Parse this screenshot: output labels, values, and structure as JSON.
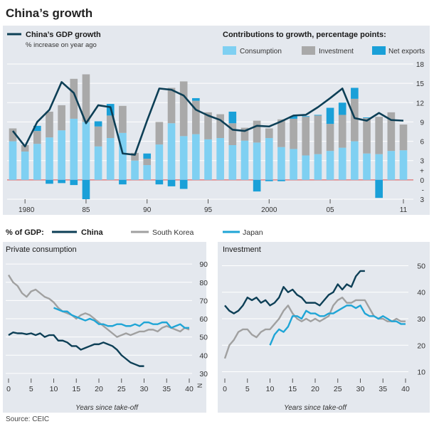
{
  "title": "China’s growth",
  "source": "Source: CEIC",
  "colors": {
    "background": "#e8ebef",
    "panel": "#e4e8ee",
    "china": "#0d3f56",
    "korea": "#a0a0a0",
    "japan": "#1fa5d6",
    "consumption": "#7fd0f2",
    "investment": "#a9a9a9",
    "net_exports": "#1aa0d8",
    "zero_line": "#e06c6c",
    "grid": "#ffffff",
    "axis_text": "#333333"
  },
  "chart_data": [
    {
      "type": "bar",
      "name": "gdp-contributions",
      "title": "China’s GDP growth",
      "subtitle": "% increase on year ago",
      "legend_title": "Contributions to growth, percentage points:",
      "legend": [
        "Consumption",
        "Investment",
        "Net exports"
      ],
      "line_label": "China’s GDP growth",
      "x_tick_labels": [
        "1980",
        "85",
        "90",
        "95",
        "2000",
        "05",
        "11"
      ],
      "x_ticks": [
        1980,
        1985,
        1990,
        1995,
        2000,
        2005,
        2011
      ],
      "y_tick_labels": [
        "18",
        "15",
        "12",
        "9",
        "6",
        "3",
        "+",
        "0",
        "-",
        "3"
      ],
      "ylim": [
        -3,
        18
      ],
      "years": [
        1979,
        1980,
        1981,
        1982,
        1983,
        1984,
        1985,
        1986,
        1987,
        1988,
        1989,
        1990,
        1991,
        1992,
        1993,
        1994,
        1995,
        1996,
        1997,
        1998,
        1999,
        2000,
        2001,
        2002,
        2003,
        2004,
        2005,
        2006,
        2007,
        2008,
        2009,
        2010,
        2011
      ],
      "series": [
        {
          "name": "Consumption",
          "values": [
            6.0,
            4.4,
            5.6,
            6.6,
            7.7,
            9.5,
            9.0,
            5.2,
            6.5,
            7.3,
            3.0,
            2.3,
            5.5,
            8.8,
            6.8,
            7.1,
            6.3,
            6.5,
            5.4,
            6.1,
            5.8,
            6.5,
            5.1,
            4.8,
            3.8,
            4.0,
            4.5,
            5.0,
            6.0,
            4.1,
            4.0,
            4.5,
            4.6
          ]
        },
        {
          "name": "Investment",
          "values": [
            2.0,
            1.0,
            2.0,
            4.0,
            3.9,
            6.2,
            7.4,
            3.1,
            3.5,
            4.2,
            1.2,
            1.0,
            3.5,
            5.5,
            8.5,
            5.2,
            4.2,
            3.7,
            3.4,
            2.0,
            3.4,
            1.5,
            4.3,
            4.7,
            6.0,
            6.0,
            4.2,
            5.1,
            6.6,
            5.5,
            5.8,
            6.0,
            4.0
          ]
        },
        {
          "name": "Net exports",
          "values": [
            0,
            0,
            0.8,
            -0.6,
            -0.5,
            -0.8,
            -3.0,
            0.8,
            1.8,
            -0.7,
            0,
            0.8,
            -0.7,
            -1.0,
            -1.4,
            0.4,
            0,
            0,
            1.8,
            0,
            -1.8,
            -0.2,
            -0.2,
            0.4,
            0.1,
            0.1,
            2.5,
            1.9,
            1.7,
            0.1,
            -2.8,
            0,
            0
          ]
        },
        {
          "name": "China’s GDP growth",
          "values": [
            7.6,
            5.2,
            9.0,
            10.9,
            15.2,
            13.5,
            8.8,
            11.6,
            11.3,
            4.1,
            3.9,
            9.2,
            14.2,
            14.0,
            13.1,
            10.9,
            10.0,
            9.3,
            7.8,
            7.6,
            8.4,
            8.3,
            9.1,
            10.0,
            10.1,
            11.3,
            12.7,
            14.2,
            9.6,
            9.2,
            10.4,
            9.3,
            9.2
          ]
        }
      ]
    },
    {
      "type": "line",
      "name": "private-consumption",
      "title": "Private consumption",
      "ylabel": "% of GDP:",
      "xlabel": "Years since take-off",
      "xlim": [
        0,
        40
      ],
      "ylim": [
        28,
        92
      ],
      "x_ticks": [
        0,
        5,
        10,
        15,
        20,
        25,
        30,
        35,
        40
      ],
      "y_ticks": [
        30,
        40,
        50,
        60,
        70,
        80,
        90
      ],
      "axis_break_label": "N",
      "series": [
        {
          "name": "China",
          "x": [
            0,
            1,
            2,
            3,
            4,
            5,
            6,
            7,
            8,
            9,
            10,
            11,
            12,
            13,
            14,
            15,
            16,
            17,
            18,
            19,
            20,
            21,
            22,
            23,
            24,
            25,
            26,
            27,
            28,
            29,
            30
          ],
          "values": [
            51,
            52.5,
            52,
            52,
            51.5,
            52,
            51,
            52,
            50,
            51,
            51,
            48,
            48,
            47,
            45,
            45,
            43,
            44,
            45,
            46,
            46,
            47,
            46,
            45,
            43,
            40,
            38,
            36,
            35,
            34,
            34
          ]
        },
        {
          "name": "South Korea",
          "x": [
            0,
            1,
            2,
            3,
            4,
            5,
            6,
            7,
            8,
            9,
            10,
            11,
            12,
            13,
            14,
            15,
            16,
            17,
            18,
            19,
            20,
            21,
            22,
            23,
            24,
            25,
            26,
            27,
            28,
            29,
            30,
            31,
            32,
            33,
            34,
            35,
            36,
            37,
            38,
            39,
            40
          ],
          "values": [
            84,
            80,
            78,
            74,
            72,
            75,
            76,
            74,
            72,
            71,
            69,
            66,
            64,
            63,
            62,
            60,
            62,
            63,
            62,
            60,
            58,
            56,
            54,
            52,
            50,
            51,
            52,
            51,
            52,
            53,
            53,
            54,
            54,
            53,
            55,
            56,
            55,
            54,
            53,
            55,
            54
          ]
        },
        {
          "name": "Japan",
          "x": [
            10,
            11,
            12,
            13,
            14,
            15,
            16,
            17,
            18,
            19,
            20,
            21,
            22,
            23,
            24,
            25,
            26,
            27,
            28,
            29,
            30,
            31,
            32,
            33,
            34,
            35,
            36,
            37,
            38,
            39,
            40
          ],
          "values": [
            66,
            65,
            64,
            64,
            62,
            61,
            60,
            59,
            60,
            59,
            57,
            57,
            56,
            56,
            57,
            57,
            56,
            56,
            57,
            56,
            58,
            58,
            57,
            57,
            58,
            58,
            55,
            56,
            57,
            55,
            55
          ]
        }
      ]
    },
    {
      "type": "line",
      "name": "investment",
      "title": "Investment",
      "xlabel": "Years since take-off",
      "xlim": [
        0,
        40
      ],
      "ylim": [
        8,
        52
      ],
      "x_ticks": [
        0,
        5,
        10,
        15,
        20,
        25,
        30,
        35,
        40
      ],
      "y_ticks": [
        10,
        20,
        30,
        40,
        50
      ],
      "series": [
        {
          "name": "China",
          "x": [
            0,
            1,
            2,
            3,
            4,
            5,
            6,
            7,
            8,
            9,
            10,
            11,
            12,
            13,
            14,
            15,
            16,
            17,
            18,
            19,
            20,
            21,
            22,
            23,
            24,
            25,
            26,
            27,
            28,
            29,
            30,
            31
          ],
          "values": [
            35,
            33,
            32,
            33,
            35,
            38,
            37,
            38,
            36,
            37,
            35,
            36,
            38,
            42,
            40,
            41,
            39,
            38,
            36,
            36,
            36,
            35,
            37,
            39,
            40,
            43,
            41,
            43,
            42,
            46,
            48,
            48
          ]
        },
        {
          "name": "South Korea",
          "x": [
            0,
            1,
            2,
            3,
            4,
            5,
            6,
            7,
            8,
            9,
            10,
            11,
            12,
            13,
            14,
            15,
            16,
            17,
            18,
            19,
            20,
            21,
            22,
            23,
            24,
            25,
            26,
            27,
            28,
            29,
            30,
            31,
            32,
            33,
            34,
            35,
            36,
            37,
            38,
            39,
            40
          ],
          "values": [
            15,
            20,
            22,
            25,
            26,
            26,
            24,
            23,
            25,
            26,
            26,
            28,
            30,
            33,
            35,
            32,
            30,
            29,
            30,
            29,
            30,
            29,
            30,
            31,
            35,
            37,
            38,
            36,
            36,
            37,
            37,
            37,
            34,
            31,
            30,
            30,
            29,
            29,
            30,
            29,
            29
          ]
        },
        {
          "name": "Japan",
          "x": [
            10,
            11,
            12,
            13,
            14,
            15,
            16,
            17,
            18,
            19,
            20,
            21,
            22,
            23,
            24,
            25,
            26,
            27,
            28,
            29,
            30,
            31,
            32,
            33,
            34,
            35,
            36,
            37,
            38,
            39,
            40
          ],
          "values": [
            20,
            24,
            26,
            25,
            27,
            31,
            31,
            30,
            33,
            32,
            32,
            31,
            31,
            32,
            32,
            33,
            34,
            35,
            35,
            34,
            35,
            32,
            31,
            31,
            30,
            31,
            30,
            29,
            29,
            28,
            28
          ]
        }
      ]
    }
  ]
}
